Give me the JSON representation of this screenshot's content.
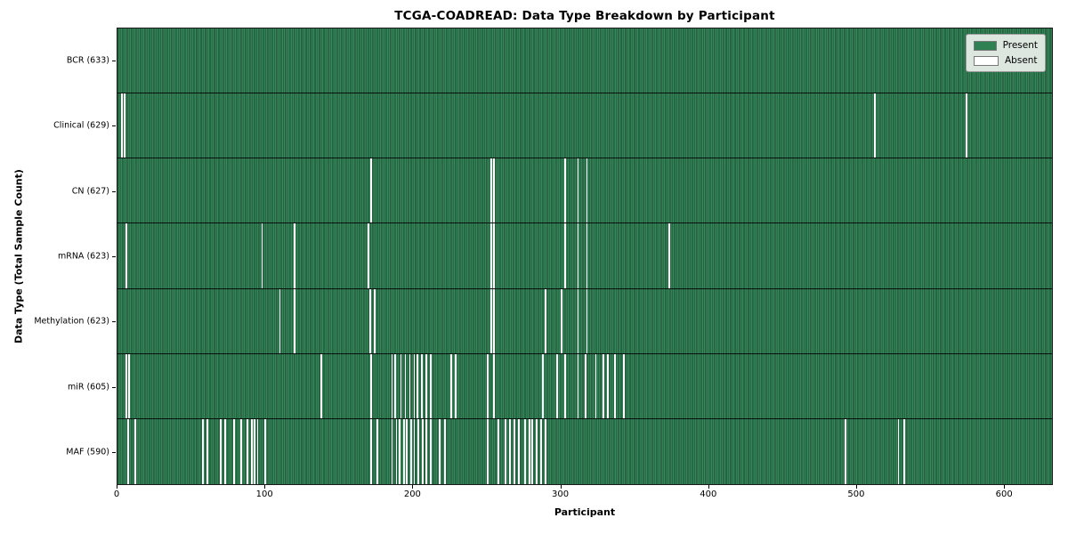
{
  "title": "TCGA-COADREAD: Data Type Breakdown by Participant",
  "legend": {
    "present_label": "Present",
    "absent_label": "Absent"
  },
  "chart_data": {
    "type": "heatmap",
    "title": "TCGA-COADREAD: Data Type Breakdown by Participant",
    "xlabel": "Participant",
    "ylabel": "Data Type (Total Sample Count)",
    "x_ticks": [
      0,
      100,
      200,
      300,
      400,
      500,
      600
    ],
    "n_participants": 633,
    "grid": false,
    "legend_position": "upper right",
    "colors": {
      "present": "#2f8153",
      "absent": "#ffffff",
      "cell_edge": "#1c4731",
      "row_divider": "#000000"
    },
    "legend_entries": [
      {
        "label": "Present",
        "color": "#2f8153"
      },
      {
        "label": "Absent",
        "color": "#ffffff"
      }
    ],
    "rows": [
      {
        "name": "BCR",
        "total": 633,
        "absent": []
      },
      {
        "name": "Clinical",
        "total": 629,
        "absent": [
          3,
          5,
          513,
          575
        ]
      },
      {
        "name": "CN",
        "total": 627,
        "absent": [
          172,
          253,
          255,
          303,
          312,
          318
        ]
      },
      {
        "name": "mRNA",
        "total": 623,
        "absent": [
          6,
          98,
          120,
          170,
          253,
          255,
          303,
          312,
          318,
          374
        ]
      },
      {
        "name": "Methylation",
        "total": 623,
        "absent": [
          110,
          120,
          171,
          174,
          253,
          255,
          290,
          301,
          312,
          318
        ]
      },
      {
        "name": "miR",
        "total": 605,
        "absent": [
          6,
          8,
          138,
          172,
          186,
          188,
          192,
          195,
          198,
          201,
          203,
          206,
          209,
          212,
          226,
          229,
          251,
          255,
          288,
          298,
          303,
          312,
          317,
          324,
          329,
          332,
          337,
          343
        ]
      },
      {
        "name": "MAF",
        "total": 590,
        "absent": [
          7,
          12,
          58,
          61,
          70,
          73,
          79,
          84,
          88,
          91,
          93,
          95,
          100,
          172,
          176,
          186,
          189,
          191,
          194,
          196,
          199,
          201,
          204,
          207,
          209,
          212,
          218,
          222,
          251,
          258,
          263,
          266,
          269,
          272,
          276,
          279,
          281,
          284,
          287,
          290,
          493,
          529,
          533
        ]
      }
    ]
  }
}
